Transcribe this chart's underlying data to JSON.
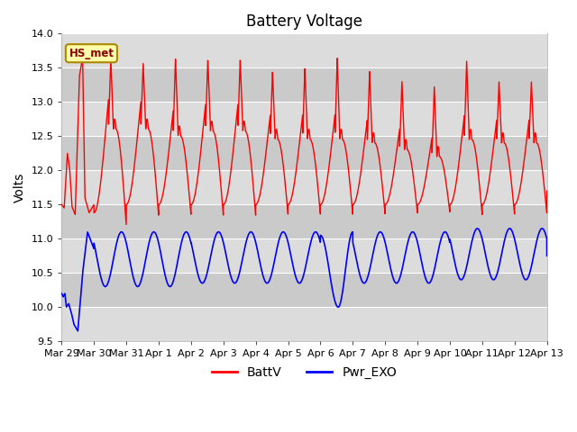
{
  "title": "Battery Voltage",
  "ylabel": "Volts",
  "ylim": [
    9.5,
    14.0
  ],
  "yticks": [
    9.5,
    10.0,
    10.5,
    11.0,
    11.5,
    12.0,
    12.5,
    13.0,
    13.5,
    14.0
  ],
  "xtick_labels": [
    "Mar 29",
    "Mar 30",
    "Mar 31",
    "Apr 1",
    "Apr 2",
    "Apr 3",
    "Apr 4",
    "Apr 5",
    "Apr 6",
    "Apr 7",
    "Apr 8",
    "Apr 9",
    "Apr 10",
    "Apr 11",
    "Apr 12",
    "Apr 13"
  ],
  "label_box_text": "HS_met",
  "label_box_facecolor": "#FFFFAA",
  "label_box_edgecolor": "#AA8800",
  "bg_color": "#FFFFFF",
  "plot_bg_color": "#E8E8E8",
  "band_color_light": "#DCDCDC",
  "band_color_dark": "#C8C8C8",
  "grid_color": "#FFFFFF",
  "red_color": "#FF0000",
  "blue_color": "#0000FF",
  "legend_labels": [
    "BattV",
    "Pwr_EXO"
  ],
  "title_fontsize": 12,
  "axis_label_fontsize": 10,
  "tick_fontsize": 8,
  "legend_fontsize": 10
}
